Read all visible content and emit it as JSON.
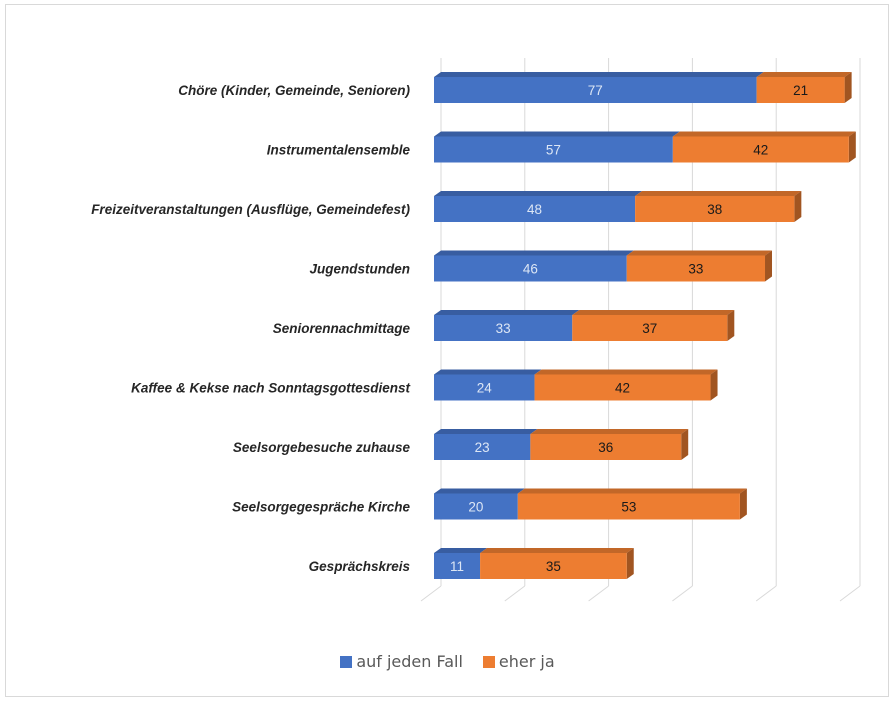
{
  "chart_data": {
    "type": "bar",
    "orientation": "horizontal",
    "stacked": true,
    "style": "3d",
    "categories": [
      "Chöre (Kinder, Gemeinde, Senioren)",
      "Instrumentalensemble",
      "Freizeitveranstaltungen (Ausflüge, Gemeindefest)",
      "Jugendstunden",
      "Seniorennachmittage",
      "Kaffee & Kekse nach Sonntagsgottesdienst",
      "Seelsorgebesuche zuhause",
      "Seelsorgegespräche Kirche",
      "Gesprächskreis"
    ],
    "series": [
      {
        "name": "auf jeden Fall",
        "color": "#4472c4",
        "label_color": "#dce6f5",
        "values": [
          77,
          57,
          48,
          46,
          33,
          24,
          23,
          20,
          11
        ]
      },
      {
        "name": "eher ja",
        "color": "#ed7d31",
        "label_color": "#1a1a1a",
        "values": [
          21,
          42,
          38,
          33,
          37,
          42,
          36,
          53,
          35
        ]
      }
    ],
    "xlim": [
      0,
      100
    ],
    "grid": true,
    "legend_position": "bottom"
  }
}
